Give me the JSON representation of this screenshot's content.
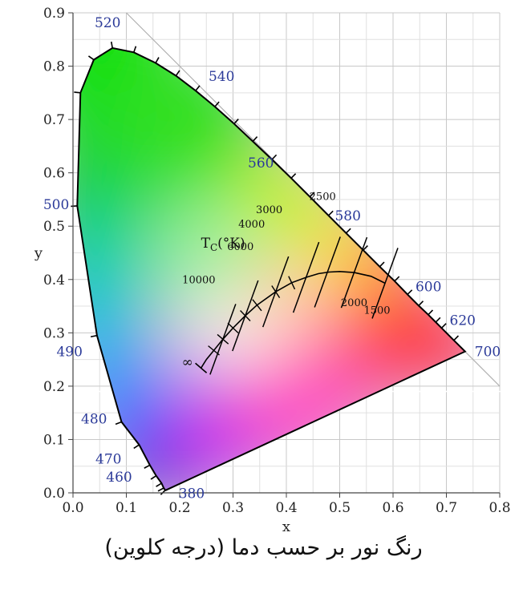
{
  "chart_data": {
    "type": "scatter",
    "title": "",
    "xlabel": "x",
    "ylabel": "y",
    "xlim": [
      0.0,
      0.8
    ],
    "ylim": [
      0.0,
      0.9
    ],
    "x_ticks": [
      "0.0",
      "0.1",
      "0.2",
      "0.3",
      "0.4",
      "0.5",
      "0.6",
      "0.7",
      "0.8"
    ],
    "y_ticks": [
      "0.0",
      "0.1",
      "0.2",
      "0.3",
      "0.4",
      "0.5",
      "0.6",
      "0.7",
      "0.8",
      "0.9"
    ],
    "grid": true,
    "spectral_locus": {
      "name": "",
      "points": [
        [
          0.174,
          0.005
        ],
        [
          0.173,
          0.005
        ],
        [
          0.17,
          0.009
        ],
        [
          0.166,
          0.018
        ],
        [
          0.156,
          0.032
        ],
        [
          0.144,
          0.052
        ],
        [
          0.124,
          0.09
        ],
        [
          0.091,
          0.133
        ],
        [
          0.045,
          0.295
        ],
        [
          0.008,
          0.538
        ],
        [
          0.014,
          0.75
        ],
        [
          0.039,
          0.812
        ],
        [
          0.074,
          0.834
        ],
        [
          0.114,
          0.826
        ],
        [
          0.155,
          0.806
        ],
        [
          0.193,
          0.782
        ],
        [
          0.23,
          0.754
        ],
        [
          0.266,
          0.724
        ],
        [
          0.302,
          0.692
        ],
        [
          0.337,
          0.659
        ],
        [
          0.373,
          0.625
        ],
        [
          0.409,
          0.59
        ],
        [
          0.444,
          0.555
        ],
        [
          0.479,
          0.52
        ],
        [
          0.512,
          0.487
        ],
        [
          0.544,
          0.455
        ],
        [
          0.575,
          0.424
        ],
        [
          0.603,
          0.397
        ],
        [
          0.627,
          0.372
        ],
        [
          0.648,
          0.351
        ],
        [
          0.666,
          0.334
        ],
        [
          0.68,
          0.32
        ],
        [
          0.691,
          0.309
        ],
        [
          0.714,
          0.286
        ],
        [
          0.735,
          0.265
        ]
      ]
    },
    "wavelength_labels": [
      {
        "text": "380",
        "x": 0.174,
        "y": 0.005
      },
      {
        "text": "460",
        "x": 0.144,
        "y": 0.03
      },
      {
        "text": "470",
        "x": 0.124,
        "y": 0.058
      },
      {
        "text": "480",
        "x": 0.091,
        "y": 0.133
      },
      {
        "text": "490",
        "x": 0.045,
        "y": 0.295
      },
      {
        "text": "500",
        "x": 0.008,
        "y": 0.538
      },
      {
        "text": "520",
        "x": 0.074,
        "y": 0.834
      },
      {
        "text": "540",
        "x": 0.23,
        "y": 0.754
      },
      {
        "text": "560",
        "x": 0.373,
        "y": 0.625
      },
      {
        "text": "580",
        "x": 0.512,
        "y": 0.487
      },
      {
        "text": "600",
        "x": 0.627,
        "y": 0.372
      },
      {
        "text": "620",
        "x": 0.691,
        "y": 0.309
      },
      {
        "text": "700",
        "x": 0.735,
        "y": 0.265
      }
    ],
    "planckian_locus": {
      "title": "T",
      "title_sub": "C",
      "title_unit": "(°K)",
      "infinity_label": "∞",
      "points": [
        [
          0.24,
          0.234
        ],
        [
          0.25,
          0.25
        ],
        [
          0.264,
          0.267
        ],
        [
          0.281,
          0.288
        ],
        [
          0.3,
          0.309
        ],
        [
          0.323,
          0.332
        ],
        [
          0.345,
          0.352
        ],
        [
          0.38,
          0.377
        ],
        [
          0.41,
          0.394
        ],
        [
          0.437,
          0.404
        ],
        [
          0.46,
          0.411
        ],
        [
          0.48,
          0.414
        ],
        [
          0.5,
          0.415
        ],
        [
          0.527,
          0.413
        ],
        [
          0.559,
          0.406
        ],
        [
          0.585,
          0.393
        ]
      ],
      "isotherms": [
        {
          "label": "10000",
          "x": 0.281,
          "y": 0.288
        },
        {
          "label": "6000",
          "x": 0.323,
          "y": 0.332
        },
        {
          "label": "4000",
          "x": 0.38,
          "y": 0.377
        },
        {
          "label": "3000",
          "x": 0.437,
          "y": 0.404
        },
        {
          "label": "2500",
          "x": 0.477,
          "y": 0.414
        },
        {
          "label": "2000",
          "x": 0.527,
          "y": 0.413
        },
        {
          "label": "1500",
          "x": 0.585,
          "y": 0.393
        }
      ]
    }
  },
  "caption": "رنگ نور بر حسب دما (درجه کلوین)"
}
